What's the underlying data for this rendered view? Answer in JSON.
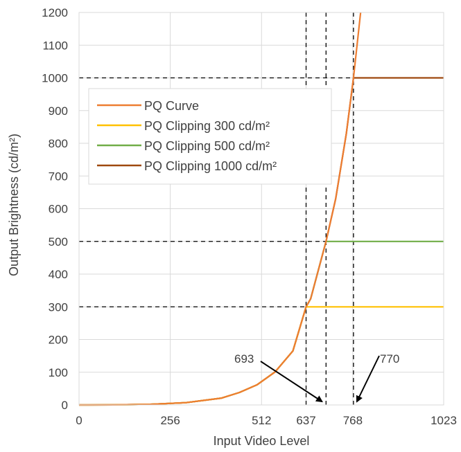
{
  "chart_data": {
    "type": "line",
    "xlabel": "Input Video Level",
    "ylabel": "Output Brightness (cd/m²)",
    "xlim": [
      0,
      1023
    ],
    "ylim": [
      0,
      1200
    ],
    "x_ticks": [
      0,
      256,
      512,
      637,
      768,
      1023
    ],
    "y_ticks": [
      0,
      100,
      200,
      300,
      400,
      500,
      600,
      700,
      800,
      900,
      1000,
      1100,
      1200
    ],
    "grid": true,
    "legend_position": "upper-left",
    "series": [
      {
        "name": "PQ Curve",
        "color": "#ED7D31",
        "x": [
          0,
          100,
          200,
          300,
          400,
          450,
          500,
          550,
          600,
          637,
          650,
          693,
          720,
          750,
          770,
          790
        ],
        "y": [
          0.01,
          0.3,
          2.0,
          7.0,
          21,
          38,
          62,
          101,
          165,
          300,
          325,
          500,
          630,
          830,
          1000,
          1200
        ]
      },
      {
        "name": "PQ Clipping 300 cd/m²",
        "color": "#FFC000",
        "x": [
          0,
          100,
          200,
          300,
          400,
          450,
          500,
          550,
          600,
          637,
          1023
        ],
        "y": [
          0.01,
          0.3,
          2.0,
          7.0,
          21,
          38,
          62,
          101,
          165,
          300,
          300
        ]
      },
      {
        "name": "PQ Clipping 500 cd/m²",
        "color": "#70AD47",
        "x": [
          0,
          100,
          200,
          300,
          400,
          450,
          500,
          550,
          600,
          637,
          650,
          693,
          1023
        ],
        "y": [
          0.01,
          0.3,
          2.0,
          7.0,
          21,
          38,
          62,
          101,
          165,
          300,
          325,
          500,
          500
        ]
      },
      {
        "name": "PQ Clipping 1000 cd/m²",
        "color": "#9E480E",
        "x": [
          0,
          100,
          200,
          300,
          400,
          450,
          500,
          550,
          600,
          637,
          650,
          693,
          720,
          750,
          770,
          1023
        ],
        "y": [
          0.01,
          0.3,
          2.0,
          7.0,
          21,
          38,
          62,
          101,
          165,
          300,
          325,
          500,
          630,
          830,
          1000,
          1000
        ]
      }
    ],
    "reference_lines": {
      "horizontal": [
        300,
        500,
        1000
      ],
      "vertical": [
        637,
        693,
        770
      ]
    },
    "annotations": [
      {
        "text": "693",
        "target_x": 693
      },
      {
        "text": "770",
        "target_x": 770
      }
    ]
  }
}
